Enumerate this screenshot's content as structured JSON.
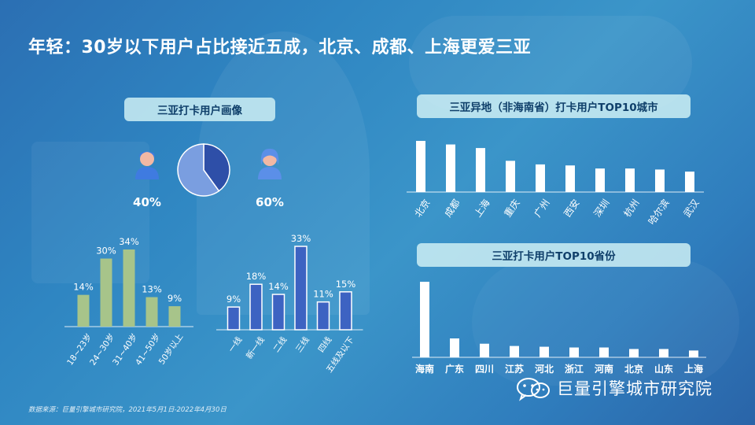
{
  "title": "年轻：30岁以下用户占比接近五成，北京、成都、上海更爱三亚",
  "panels": {
    "profile_title": "三亚打卡用户画像",
    "cities_title": "三亚异地（非海南省）打卡用户TOP10城市",
    "provinces_title": "三亚打卡用户TOP10省份"
  },
  "footnote": "数据来源：巨量引擎城市研究院，2021年5月1日-2022年4月30日",
  "brand": {
    "name": "巨量引擎城市研究院",
    "icon": "wechat-icon"
  },
  "colors": {
    "male": "#2e4fa8",
    "female": "#7a9ee0",
    "age_bar": "#a7c48a",
    "tier_bar": "#3d63c2",
    "white_bar": "#ffffff"
  },
  "chart_data": [
    {
      "type": "pie",
      "name": "gender",
      "slices": [
        {
          "label": "40%",
          "value": 40,
          "icon": "male-user-icon"
        },
        {
          "label": "60%",
          "value": 60,
          "icon": "female-user-icon"
        }
      ]
    },
    {
      "type": "bar",
      "name": "age",
      "categories": [
        "18~23岁",
        "24~30岁",
        "31~40岁",
        "41~50岁",
        "50岁以上"
      ],
      "values": [
        14,
        30,
        34,
        13,
        9
      ],
      "labels": [
        "14%",
        "30%",
        "34%",
        "13%",
        "9%"
      ],
      "ylim": [
        0,
        34
      ]
    },
    {
      "type": "bar",
      "name": "city_tier",
      "categories": [
        "一线",
        "新一线",
        "二线",
        "三线",
        "四线",
        "五线及以下"
      ],
      "values": [
        9,
        18,
        14,
        33,
        11,
        15
      ],
      "labels": [
        "9%",
        "18%",
        "14%",
        "33%",
        "11%",
        "15%"
      ],
      "ylim": [
        0,
        33
      ]
    },
    {
      "type": "bar",
      "name": "top10_cities",
      "categories": [
        "北京",
        "成都",
        "上海",
        "重庆",
        "广州",
        "西安",
        "深圳",
        "杭州",
        "哈尔滨",
        "武汉"
      ],
      "values": [
        100,
        93,
        86,
        61,
        54,
        52,
        46,
        46,
        44,
        40
      ]
    },
    {
      "type": "bar",
      "name": "top10_provinces",
      "categories": [
        "海南",
        "广东",
        "四川",
        "江苏",
        "河北",
        "浙江",
        "河南",
        "北京",
        "山东",
        "上海"
      ],
      "values": [
        100,
        25,
        18,
        15,
        14,
        13,
        13,
        11,
        11,
        9
      ]
    }
  ]
}
